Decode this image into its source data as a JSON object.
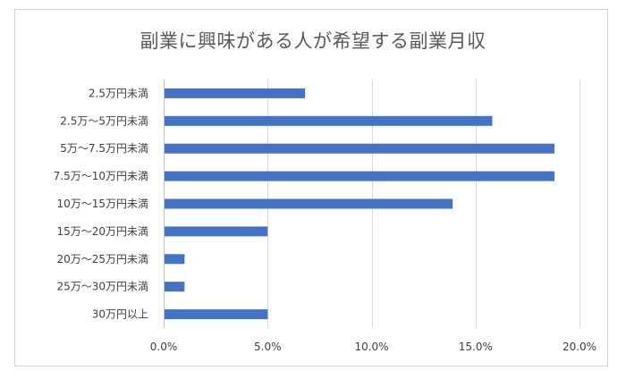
{
  "chart_data": {
    "type": "bar",
    "orientation": "horizontal",
    "title": "副業に興味がある人が希望する副業月収",
    "categories": [
      "2.5万円未満",
      "2.5万〜5万円未満",
      "5万〜7.5万円未満",
      "7.5万〜10万円未満",
      "10万〜15万円未満",
      "15万〜20万円未満",
      "20万〜25万円未満",
      "25万〜30万円未満",
      "30万円以上"
    ],
    "values": [
      6.8,
      15.8,
      18.8,
      18.8,
      13.9,
      5.0,
      1.0,
      1.0,
      5.0
    ],
    "xlim": [
      0,
      20
    ],
    "xticks": [
      0,
      5,
      10,
      15,
      20
    ],
    "xtick_labels": [
      "0.0%",
      "5.0%",
      "10.0%",
      "15.0%",
      "20.0%"
    ],
    "grid": true,
    "legend": "none",
    "bar_color": "#4472C4",
    "grid_color": "#d9d9d9",
    "axis_color": "#bfbfbf"
  }
}
